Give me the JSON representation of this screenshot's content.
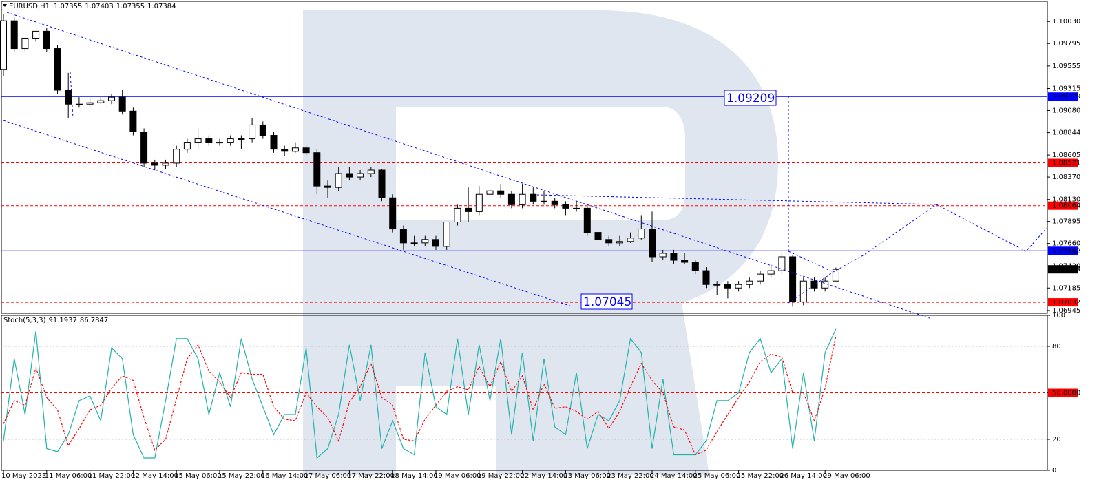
{
  "chart_data": [
    {
      "type": "candlestick",
      "title": "EURUSD,H1",
      "quote": [
        1.07355,
        1.07403,
        1.07355,
        1.07384
      ],
      "categories": [
        "10 May 2023",
        null,
        null,
        null,
        "11 May 06:00",
        null,
        null,
        null,
        "11 May 22:00",
        null,
        null,
        null,
        "12 May 14:00",
        null,
        null,
        null,
        "15 May 06:00",
        null,
        null,
        null,
        "15 May 22:00",
        null,
        null,
        null,
        "16 May 14:00",
        null,
        null,
        null,
        "17 May 06:00",
        null,
        null,
        null,
        "17 May 22:00",
        null,
        null,
        null,
        "18 May 14:00",
        null,
        null,
        null,
        "19 May 06:00",
        null,
        null,
        null,
        "19 May 22:00",
        null,
        null,
        null,
        "22 May 14:00",
        null,
        null,
        null,
        "23 May 06:00",
        null,
        null,
        null,
        "23 May 22:00",
        null,
        null,
        null,
        "24 May 14:00",
        null,
        null,
        null,
        "25 May 06:00",
        null,
        null,
        null,
        "25 May 22:00",
        null,
        null,
        null,
        "26 May 14:00",
        null,
        null,
        null,
        "29 May 06:00",
        null
      ],
      "open": [
        1.09519,
        1.10038,
        1.09741,
        1.09852,
        1.09926,
        1.09741,
        1.09297,
        1.09148,
        1.09148,
        1.09163,
        1.09185,
        1.09222,
        1.09074,
        1.08852,
        1.08518,
        1.08496,
        1.08518,
        1.08667,
        1.08741,
        1.08778,
        1.08741,
        1.08741,
        1.08778,
        1.08778,
        1.08926,
        1.08815,
        1.08667,
        1.08644,
        1.08681,
        1.0863,
        1.08274,
        1.08259,
        1.08407,
        1.0837,
        1.08407,
        1.08444,
        1.08148,
        1.07815,
        1.07666,
        1.07666,
        1.07703,
        1.07629,
        1.07889,
        1.08037,
        1.08,
        1.08185,
        1.08222,
        1.08185,
        1.08074,
        1.08185,
        1.08111,
        1.08111,
        1.08074,
        1.08037,
        1.08037,
        1.07778,
        1.07703,
        1.07666,
        1.07681,
        1.07718,
        1.07815,
        1.07518,
        1.07555,
        1.07481,
        1.07459,
        1.0737,
        1.07222,
        1.07222,
        1.07185,
        1.07222,
        1.07259,
        1.07333,
        1.0737,
        1.07518,
        1.07037,
        1.07259,
        1.07185,
        1.07259
      ],
      "high": [
        1.10112,
        1.10075,
        1.09852,
        1.09926,
        1.09963,
        1.09778,
        1.09482,
        1.09222,
        1.09222,
        1.09222,
        1.0926,
        1.09297,
        1.09111,
        1.08889,
        1.08555,
        1.08555,
        1.08704,
        1.08778,
        1.08889,
        1.08815,
        1.08778,
        1.08815,
        1.08815,
        1.09,
        1.08963,
        1.08852,
        1.08704,
        1.08741,
        1.08704,
        1.08667,
        1.08333,
        1.08481,
        1.08481,
        1.08444,
        1.08481,
        1.08459,
        1.08185,
        1.07852,
        1.07741,
        1.07741,
        1.07741,
        1.07889,
        1.08074,
        1.08259,
        1.08274,
        1.08259,
        1.08296,
        1.08222,
        1.08296,
        1.08259,
        1.08222,
        1.08148,
        1.08111,
        1.08111,
        1.08074,
        1.07852,
        1.07741,
        1.07741,
        1.07778,
        1.07963,
        1.08,
        1.07592,
        1.07592,
        1.07555,
        1.07481,
        1.07407,
        1.07259,
        1.07259,
        1.07259,
        1.07296,
        1.0737,
        1.07444,
        1.07555,
        1.07533,
        1.07296,
        1.07296,
        1.07296,
        1.07403
      ],
      "low": [
        1.09445,
        1.09704,
        1.09704,
        1.09815,
        1.09704,
        1.0926,
        1.09,
        1.09111,
        1.09111,
        1.09148,
        1.09148,
        1.09037,
        1.08815,
        1.08481,
        1.08444,
        1.08459,
        1.08481,
        1.0863,
        1.08667,
        1.08704,
        1.08704,
        1.08704,
        1.08667,
        1.08741,
        1.08778,
        1.0863,
        1.08593,
        1.0863,
        1.08593,
        1.08185,
        1.08148,
        1.08222,
        1.08333,
        1.08333,
        1.0837,
        1.08111,
        1.07778,
        1.07592,
        1.07629,
        1.07629,
        1.07592,
        1.07592,
        1.07852,
        1.07889,
        1.07963,
        1.08111,
        1.08148,
        1.08037,
        1.08037,
        1.08074,
        1.08074,
        1.08037,
        1.07963,
        1.08,
        1.07741,
        1.07629,
        1.07629,
        1.07629,
        1.07666,
        1.07703,
        1.07459,
        1.07481,
        1.07444,
        1.07444,
        1.07333,
        1.07185,
        1.07111,
        1.07074,
        1.07148,
        1.07185,
        1.07222,
        1.07296,
        1.07333,
        1.06985,
        1.07,
        1.07148,
        1.07148,
        1.07259
      ],
      "close": [
        1.10038,
        1.09741,
        1.09852,
        1.09926,
        1.09741,
        1.09297,
        1.09148,
        1.09148,
        1.09163,
        1.09185,
        1.09222,
        1.09074,
        1.08852,
        1.08518,
        1.08496,
        1.08518,
        1.08667,
        1.08741,
        1.08778,
        1.08741,
        1.08741,
        1.08778,
        1.08778,
        1.08926,
        1.08815,
        1.08667,
        1.08644,
        1.08681,
        1.0863,
        1.08274,
        1.08259,
        1.08407,
        1.0837,
        1.08407,
        1.08444,
        1.08148,
        1.07815,
        1.07666,
        1.07666,
        1.07703,
        1.07629,
        1.07889,
        1.08037,
        1.08,
        1.08185,
        1.08222,
        1.08185,
        1.08074,
        1.08185,
        1.08111,
        1.08111,
        1.08074,
        1.08037,
        1.08037,
        1.07778,
        1.07703,
        1.07666,
        1.07681,
        1.07718,
        1.07815,
        1.07518,
        1.07555,
        1.07481,
        1.07459,
        1.0737,
        1.07222,
        1.07222,
        1.07185,
        1.07222,
        1.07259,
        1.07333,
        1.0737,
        1.07518,
        1.07037,
        1.07259,
        1.07185,
        1.07259,
        1.07384
      ],
      "bull_color": "#ffffff",
      "bear_color": "#000000",
      "last_color": "#000000",
      "ylim": [
        1.06915,
        1.10245
      ],
      "yticks": [
        {
          "value": 1.1003,
          "label": "1.10030"
        },
        1.09795,
        1.09555,
        1.09315,
        {
          "value": 1.0908,
          "label": "1.09080"
        },
        1.08844,
        1.08605,
        {
          "value": 1.0837,
          "label": "1.08370"
        },
        {
          "value": 1.0813,
          "label": "1.08130"
        },
        1.07895,
        {
          "value": 1.0766,
          "label": "1.07660"
        },
        {
          "value": 1.0742,
          "label": "1.07420"
        },
        1.07185,
        1.06945
      ],
      "levels": [
        {
          "value": 1.09229,
          "color": "#0000ff",
          "style": "solid"
        },
        {
          "value": 1.08521,
          "color": "#ff0000",
          "style": "dashed"
        },
        {
          "value": 1.08064,
          "color": "#ff0000",
          "style": "dashed"
        },
        {
          "value": 1.07582,
          "color": "#0000ff",
          "style": "solid"
        },
        {
          "value": 1.07032,
          "color": "#ff0000",
          "style": "dashed"
        }
      ],
      "annotations": [
        "1.09209",
        "1.07045"
      ]
    },
    {
      "type": "line",
      "title": "Stoch(5,3,3)",
      "series": [
        {
          "color": "#20b2aa",
          "dashed": false,
          "values": [
            19,
            72,
            36,
            90,
            14,
            12,
            23,
            45,
            48,
            32,
            79,
            72,
            23,
            8,
            8,
            45,
            85,
            85,
            72,
            36,
            63,
            41,
            85,
            59,
            41,
            23,
            36,
            36,
            79,
            8,
            14,
            36,
            81,
            45,
            81,
            14,
            32,
            14,
            10,
            76,
            41,
            36,
            85,
            36,
            81,
            45,
            85,
            23,
            76,
            19,
            72,
            28,
            23,
            63,
            14,
            36,
            32,
            45,
            85,
            76,
            14,
            59,
            10,
            10,
            10,
            19,
            45,
            45,
            50,
            76,
            85,
            63,
            72,
            14,
            63,
            19,
            76,
            91.1937
          ]
        },
        {
          "color": "#ff0000",
          "dashed": true,
          "values": [
            30,
            45,
            42,
            66,
            47,
            39,
            16,
            27,
            39,
            42,
            53,
            61,
            58,
            34,
            13,
            20,
            46,
            72,
            81,
            64,
            57,
            47,
            63,
            62,
            62,
            41,
            33,
            32,
            50,
            41,
            34,
            19,
            44,
            54,
            69,
            47,
            42,
            20,
            19,
            33,
            42,
            51,
            54,
            52,
            67,
            54,
            70,
            51,
            61,
            39,
            56,
            40,
            41,
            38,
            33,
            38,
            27,
            38,
            54,
            69,
            58,
            50,
            28,
            26,
            10,
            13,
            25,
            36,
            47,
            57,
            70,
            75,
            73,
            50,
            50,
            32,
            53,
            86.7847
          ]
        }
      ],
      "ylim": [
        0,
        100
      ],
      "yticks": [
        100,
        80,
        {
          "value": 50,
          "label": "50.0000"
        },
        20,
        0
      ],
      "levels": [
        {
          "value": 80,
          "color": "#c0c0c0",
          "style": "dotted",
          "tag": false
        },
        {
          "value": 50,
          "color": "#ff0000",
          "style": "dashed",
          "tag": true
        },
        {
          "value": 20,
          "color": "#c0c0c0",
          "style": "dotted",
          "tag": false
        }
      ]
    }
  ]
}
